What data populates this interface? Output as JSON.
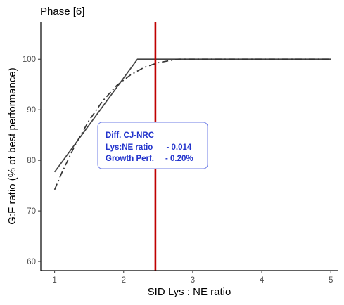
{
  "chart_data": {
    "type": "line",
    "title": "Phase [6]",
    "xlabel": "SID Lys : NE ratio",
    "ylabel": "G:F ratio (% of best performance)",
    "xlim": [
      0.8,
      5.1
    ],
    "ylim": [
      58.2,
      107.4
    ],
    "x_ticks": [
      1,
      2,
      3,
      4,
      5
    ],
    "y_ticks": [
      60,
      70,
      80,
      90,
      100
    ],
    "grid": false,
    "series": [
      {
        "style": "solid",
        "color": "#444444",
        "x": [
          1.0,
          2.2,
          5.0
        ],
        "y": [
          77.7,
          100.0,
          100.0
        ]
      },
      {
        "style": "dashdot",
        "color": "#333333",
        "x": [
          1.0,
          1.1,
          1.3,
          1.5,
          1.7,
          1.9,
          2.1,
          2.3,
          2.5,
          2.7,
          2.8,
          3.0,
          4.0,
          5.0
        ],
        "y": [
          74.2,
          77.4,
          83.1,
          87.9,
          91.8,
          94.8,
          96.9,
          98.4,
          99.3,
          99.8,
          100.0,
          100.0,
          100.0,
          100.0
        ]
      }
    ],
    "vline": {
      "x": 2.46,
      "color": "#c00000"
    },
    "annotation": {
      "lines": [
        "Diff. CJ-NRC",
        "Lys:NE ratio      - 0.014",
        "Growth Perf.     - 0.20%"
      ],
      "color": "#2233cc"
    }
  }
}
